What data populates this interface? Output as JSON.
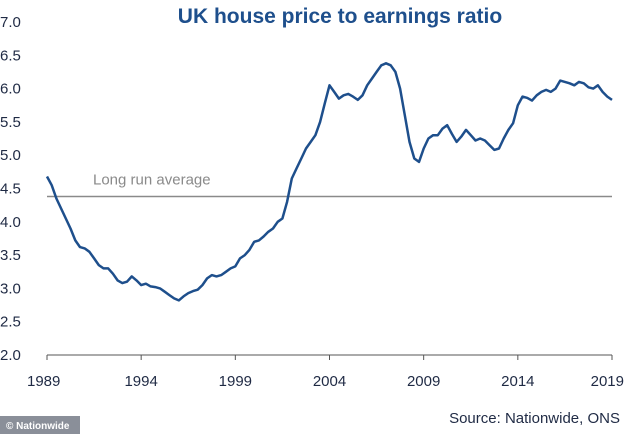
{
  "chart_data": {
    "type": "line",
    "title": "UK house price to earnings ratio",
    "xlabel": "",
    "ylabel": "",
    "xlim": [
      1989,
      2019
    ],
    "ylim": [
      2.0,
      7.0
    ],
    "x_ticks": [
      "1989",
      "1994",
      "1999",
      "2004",
      "2009",
      "2014",
      "2019"
    ],
    "y_ticks": [
      "2.0",
      "2.5",
      "3.0",
      "3.5",
      "4.0",
      "4.5",
      "5.0",
      "5.5",
      "6.0",
      "6.5",
      "7.0"
    ],
    "grid": false,
    "legend": "none",
    "series": [
      {
        "color": "#1e4f8c",
        "points": [
          [
            1989.0,
            4.68
          ],
          [
            1989.25,
            4.55
          ],
          [
            1989.5,
            4.35
          ],
          [
            1989.75,
            4.2
          ],
          [
            1990.0,
            4.05
          ],
          [
            1990.25,
            3.9
          ],
          [
            1990.5,
            3.72
          ],
          [
            1990.75,
            3.62
          ],
          [
            1991.0,
            3.6
          ],
          [
            1991.25,
            3.55
          ],
          [
            1991.5,
            3.45
          ],
          [
            1991.75,
            3.35
          ],
          [
            1992.0,
            3.3
          ],
          [
            1992.25,
            3.3
          ],
          [
            1992.5,
            3.22
          ],
          [
            1992.75,
            3.12
          ],
          [
            1993.0,
            3.08
          ],
          [
            1993.25,
            3.1
          ],
          [
            1993.5,
            3.18
          ],
          [
            1993.75,
            3.12
          ],
          [
            1994.0,
            3.05
          ],
          [
            1994.25,
            3.07
          ],
          [
            1994.5,
            3.03
          ],
          [
            1994.75,
            3.02
          ],
          [
            1995.0,
            3.0
          ],
          [
            1995.25,
            2.95
          ],
          [
            1995.5,
            2.9
          ],
          [
            1995.75,
            2.85
          ],
          [
            1996.0,
            2.82
          ],
          [
            1996.25,
            2.88
          ],
          [
            1996.5,
            2.93
          ],
          [
            1996.75,
            2.96
          ],
          [
            1997.0,
            2.98
          ],
          [
            1997.25,
            3.05
          ],
          [
            1997.5,
            3.15
          ],
          [
            1997.75,
            3.2
          ],
          [
            1998.0,
            3.18
          ],
          [
            1998.25,
            3.2
          ],
          [
            1998.5,
            3.25
          ],
          [
            1998.75,
            3.3
          ],
          [
            1999.0,
            3.33
          ],
          [
            1999.25,
            3.45
          ],
          [
            1999.5,
            3.5
          ],
          [
            1999.75,
            3.58
          ],
          [
            2000.0,
            3.7
          ],
          [
            2000.25,
            3.72
          ],
          [
            2000.5,
            3.78
          ],
          [
            2000.75,
            3.85
          ],
          [
            2001.0,
            3.9
          ],
          [
            2001.25,
            4.0
          ],
          [
            2001.5,
            4.05
          ],
          [
            2001.75,
            4.3
          ],
          [
            2002.0,
            4.65
          ],
          [
            2002.25,
            4.8
          ],
          [
            2002.5,
            4.95
          ],
          [
            2002.75,
            5.1
          ],
          [
            2003.0,
            5.2
          ],
          [
            2003.25,
            5.3
          ],
          [
            2003.5,
            5.5
          ],
          [
            2003.75,
            5.78
          ],
          [
            2004.0,
            6.05
          ],
          [
            2004.25,
            5.95
          ],
          [
            2004.5,
            5.85
          ],
          [
            2004.75,
            5.9
          ],
          [
            2005.0,
            5.92
          ],
          [
            2005.25,
            5.88
          ],
          [
            2005.5,
            5.83
          ],
          [
            2005.75,
            5.9
          ],
          [
            2006.0,
            6.05
          ],
          [
            2006.25,
            6.15
          ],
          [
            2006.5,
            6.25
          ],
          [
            2006.75,
            6.35
          ],
          [
            2007.0,
            6.38
          ],
          [
            2007.25,
            6.35
          ],
          [
            2007.5,
            6.25
          ],
          [
            2007.75,
            6.0
          ],
          [
            2008.0,
            5.6
          ],
          [
            2008.25,
            5.2
          ],
          [
            2008.5,
            4.95
          ],
          [
            2008.75,
            4.9
          ],
          [
            2009.0,
            5.1
          ],
          [
            2009.25,
            5.25
          ],
          [
            2009.5,
            5.3
          ],
          [
            2009.75,
            5.3
          ],
          [
            2010.0,
            5.4
          ],
          [
            2010.25,
            5.45
          ],
          [
            2010.5,
            5.32
          ],
          [
            2010.75,
            5.2
          ],
          [
            2011.0,
            5.28
          ],
          [
            2011.25,
            5.38
          ],
          [
            2011.5,
            5.3
          ],
          [
            2011.75,
            5.22
          ],
          [
            2012.0,
            5.25
          ],
          [
            2012.25,
            5.22
          ],
          [
            2012.5,
            5.15
          ],
          [
            2012.75,
            5.08
          ],
          [
            2013.0,
            5.1
          ],
          [
            2013.25,
            5.25
          ],
          [
            2013.5,
            5.38
          ],
          [
            2013.75,
            5.48
          ],
          [
            2014.0,
            5.75
          ],
          [
            2014.25,
            5.88
          ],
          [
            2014.5,
            5.86
          ],
          [
            2014.75,
            5.82
          ],
          [
            2015.0,
            5.9
          ],
          [
            2015.25,
            5.95
          ],
          [
            2015.5,
            5.98
          ],
          [
            2015.75,
            5.95
          ],
          [
            2016.0,
            6.0
          ],
          [
            2016.25,
            6.12
          ],
          [
            2016.5,
            6.1
          ],
          [
            2016.75,
            6.08
          ],
          [
            2017.0,
            6.05
          ],
          [
            2017.25,
            6.1
          ],
          [
            2017.5,
            6.08
          ],
          [
            2017.75,
            6.02
          ],
          [
            2018.0,
            6.0
          ],
          [
            2018.25,
            6.05
          ],
          [
            2018.5,
            5.95
          ],
          [
            2018.75,
            5.88
          ],
          [
            2019.0,
            5.83
          ]
        ]
      }
    ],
    "reference_line": {
      "value": 4.38,
      "label": "Long run average",
      "color": "#8a8a8a"
    },
    "annotations": [
      "Source: Nationwide, ONS"
    ]
  },
  "watermark": "© Nationwide",
  "colors": {
    "line": "#1e4f8c",
    "title": "#1e4f8c",
    "axis": "#555555",
    "reference": "#8a8a8a"
  }
}
